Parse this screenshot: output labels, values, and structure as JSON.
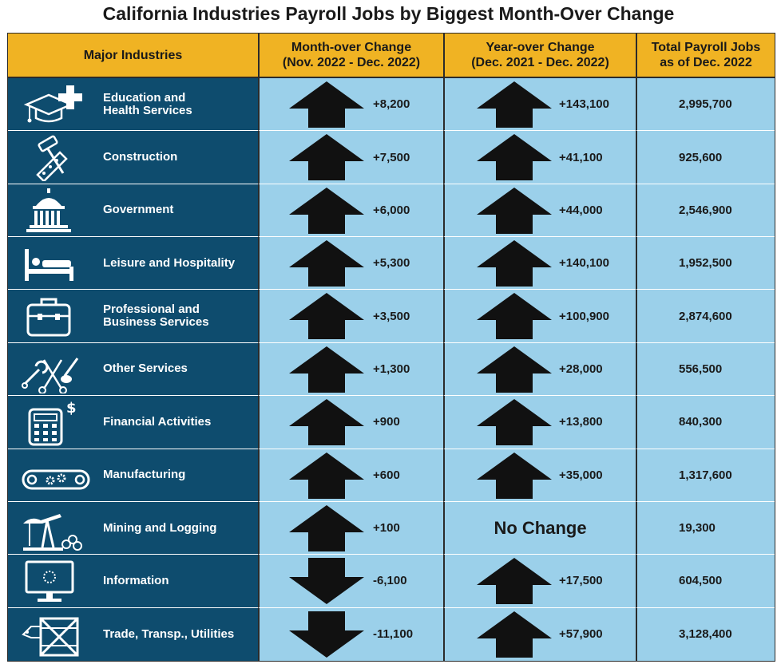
{
  "title": "California Industries Payroll Jobs by Biggest Month-Over Change",
  "headers": {
    "industry": "Major Industries",
    "month": "Month-over Change\n(Nov. 2022 - Dec. 2022)",
    "year": "Year-over Change\n(Dec. 2021 - Dec. 2022)",
    "total": "Total Payroll Jobs\nas of Dec. 2022"
  },
  "colors": {
    "header_bg": "#f0b323",
    "industry_bg": "#0e4c6e",
    "data_bg": "#9bd0ea",
    "arrow": "#111111"
  },
  "rows": [
    {
      "industry": "Education and\nHealth Services",
      "icon": "graduation-cap-medical-cross-icon",
      "month_change": "+8,200",
      "month_dir": "up",
      "year_change": "+143,100",
      "year_dir": "up",
      "total": "2,995,700"
    },
    {
      "industry": "Construction",
      "icon": "hammer-saw-tools-icon",
      "month_change": "+7,500",
      "month_dir": "up",
      "year_change": "+41,100",
      "year_dir": "up",
      "total": "925,600"
    },
    {
      "industry": "Government",
      "icon": "capitol-building-icon",
      "month_change": "+6,000",
      "month_dir": "up",
      "year_change": "+44,000",
      "year_dir": "up",
      "total": "2,546,900"
    },
    {
      "industry": "Leisure and Hospitality",
      "icon": "hotel-bed-icon",
      "month_change": "+5,300",
      "month_dir": "up",
      "year_change": "+140,100",
      "year_dir": "up",
      "total": "1,952,500"
    },
    {
      "industry": "Professional and\nBusiness Services",
      "icon": "briefcase-icon",
      "month_change": "+3,500",
      "month_dir": "up",
      "year_change": "+100,900",
      "year_dir": "up",
      "total": "2,874,600"
    },
    {
      "industry": "Other Services",
      "icon": "wrench-scissors-brush-icon",
      "month_change": "+1,300",
      "month_dir": "up",
      "year_change": "+28,000",
      "year_dir": "up",
      "total": "556,500"
    },
    {
      "industry": "Financial Activities",
      "icon": "calculator-dollar-icon",
      "month_change": "+900",
      "month_dir": "up",
      "year_change": "+13,800",
      "year_dir": "up",
      "total": "840,300"
    },
    {
      "industry": "Manufacturing",
      "icon": "conveyor-gears-icon",
      "month_change": "+600",
      "month_dir": "up",
      "year_change": "+35,000",
      "year_dir": "up",
      "total": "1,317,600"
    },
    {
      "industry": "Mining and Logging",
      "icon": "oil-pump-logs-icon",
      "month_change": "+100",
      "month_dir": "up",
      "year_change": "No Change",
      "year_dir": "none",
      "total": "19,300"
    },
    {
      "industry": "Information",
      "icon": "computer-monitor-icon",
      "month_change": "-6,100",
      "month_dir": "down",
      "year_change": "+17,500",
      "year_dir": "up",
      "total": "604,500"
    },
    {
      "industry": "Trade, Transp., Utilities",
      "icon": "shipping-crate-tag-icon",
      "month_change": "-11,100",
      "month_dir": "down",
      "year_change": "+57,900",
      "year_dir": "up",
      "total": "3,128,400"
    }
  ]
}
